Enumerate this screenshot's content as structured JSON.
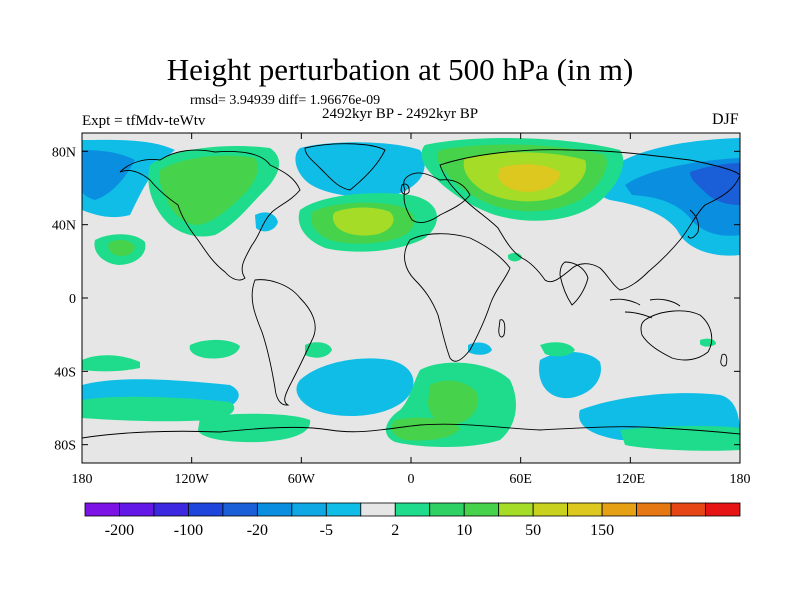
{
  "title": "Height perturbation at 500 hPa (in m)",
  "stats": "rmsd= 3.94939 diff= 1.96676e-09",
  "period": "2492kyr BP - 2492kyr BP",
  "expt": "Expt = tfMdv-teWtv",
  "season": "DJF",
  "x_ticks": [
    {
      "lon": -180,
      "label": "180"
    },
    {
      "lon": -120,
      "label": "120W"
    },
    {
      "lon": -60,
      "label": "60W"
    },
    {
      "lon": 0,
      "label": "0"
    },
    {
      "lon": 60,
      "label": "60E"
    },
    {
      "lon": 120,
      "label": "120E"
    },
    {
      "lon": 180,
      "label": "180"
    }
  ],
  "y_ticks": [
    {
      "lat": 80,
      "label": "80N"
    },
    {
      "lat": 40,
      "label": "40N"
    },
    {
      "lat": 0,
      "label": "0"
    },
    {
      "lat": -40,
      "label": "40S"
    },
    {
      "lat": -80,
      "label": "80S"
    }
  ],
  "colors": {
    "background_field": "#e6e6e6",
    "neg_light": "#10bde6",
    "neg_mid": "#0a8fe0",
    "neg_dark": "#1a5fd8",
    "pos_light": "#1edc8c",
    "pos_mid": "#46d24a",
    "pos_strong": "#a4dc28",
    "pos_peak": "#dcc81e"
  },
  "colorbar": {
    "colors": [
      "#7d12e6",
      "#6418e8",
      "#3c28e0",
      "#1e46dc",
      "#1a5fd8",
      "#0a8fe0",
      "#10a8e4",
      "#10bde6",
      "#e6e6e6",
      "#1edc8c",
      "#2ed264",
      "#46d24a",
      "#a4dc28",
      "#c8d21e",
      "#dcc81e",
      "#e6a014",
      "#e67814",
      "#e64614",
      "#e61414"
    ],
    "labels": [
      {
        "after_box": 1,
        "text": "-200"
      },
      {
        "after_box": 3,
        "text": "-100"
      },
      {
        "after_box": 5,
        "text": "-20"
      },
      {
        "after_box": 7,
        "text": "-5"
      },
      {
        "after_box": 9,
        "text": "2"
      },
      {
        "after_box": 11,
        "text": "10"
      },
      {
        "after_box": 13,
        "text": "50"
      },
      {
        "after_box": 15,
        "text": "150"
      }
    ]
  }
}
